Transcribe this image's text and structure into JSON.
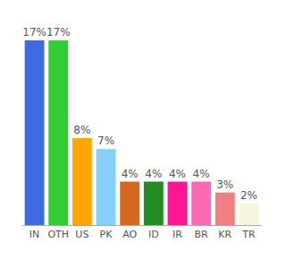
{
  "chart_data": {
    "type": "bar",
    "categories": [
      "IN",
      "OTH",
      "US",
      "PK",
      "AO",
      "ID",
      "IR",
      "BR",
      "KR",
      "TR"
    ],
    "values": [
      17,
      17,
      8,
      7,
      4,
      4,
      4,
      4,
      3,
      2
    ],
    "value_labels": [
      "17%",
      "17%",
      "8%",
      "7%",
      "4%",
      "4%",
      "4%",
      "4%",
      "3%",
      "2%"
    ],
    "colors": [
      "#4169e1",
      "#32cd32",
      "#ffa500",
      "#87cefa",
      "#d2691e",
      "#228b22",
      "#ff1493",
      "#ff69b4",
      "#f08080",
      "#f5f5dc"
    ],
    "ylim": [
      0,
      17
    ],
    "data_labels": true,
    "tick_labels": "x"
  }
}
